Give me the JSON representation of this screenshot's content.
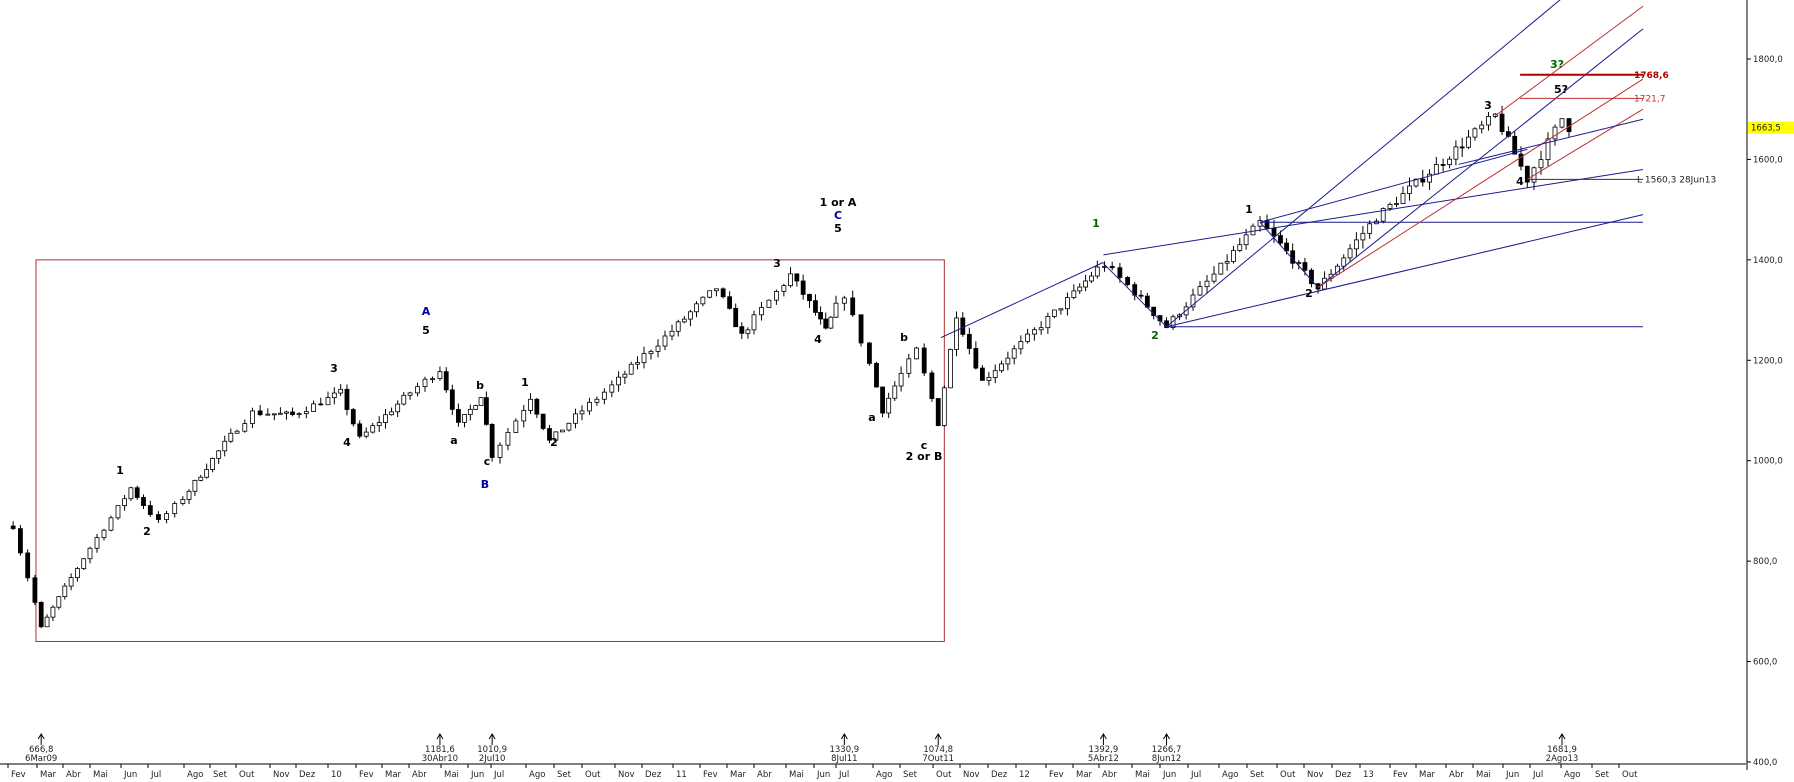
{
  "chart_data": {
    "type": "candlestick",
    "title": "",
    "xlabel": "",
    "ylabel": "",
    "ylim": [
      400,
      1900
    ],
    "y_ticks": [
      "1800,0",
      "1600,0",
      "1400,0",
      "1200,0",
      "1000,0",
      "800,0",
      "600,0",
      "400,0"
    ],
    "y_tick_values": [
      1800,
      1600,
      1400,
      1200,
      1000,
      800,
      600,
      400
    ],
    "x_ticks": [
      "Fev",
      "Mar",
      "Abr",
      "Mai",
      "Jun",
      "Jul",
      "Ago",
      "Set",
      "Out",
      "Nov",
      "Dez",
      "10",
      "Fev",
      "Mar",
      "Abr",
      "Mai",
      "Jun",
      "Jul",
      "Ago",
      "Set",
      "Out",
      "Nov",
      "Dez",
      "11",
      "Fev",
      "Mar",
      "Abr",
      "Mai",
      "Jun",
      "Jul",
      "Ago",
      "Set",
      "Out",
      "Nov",
      "Dez",
      "12",
      "Fev",
      "Mar",
      "Abr",
      "Mai",
      "Jun",
      "Jul",
      "Ago",
      "Set",
      "Out",
      "Nov",
      "Dez",
      "13",
      "Fev",
      "Mar",
      "Abr",
      "Mai",
      "Jun",
      "Jul",
      "Ago",
      "Set",
      "Out"
    ],
    "current_price_label": "1663,5",
    "current_price": 1663.5,
    "grid": false,
    "anchors": [
      {
        "date": "2009-03-06",
        "value": 666.8
      },
      {
        "date": "2010-04-30",
        "value": 1181.6
      },
      {
        "date": "2010-07-02",
        "value": 1010.9
      },
      {
        "date": "2011-07-08",
        "value": 1330.9
      },
      {
        "date": "2011-10-07",
        "value": 1074.8
      },
      {
        "date": "2012-04-05",
        "value": 1392.9
      },
      {
        "date": "2012-06-08",
        "value": 1266.7
      },
      {
        "date": "2013-08-02",
        "value": 1681.9
      },
      {
        "date": "2013-08-09",
        "value": 1663.5
      }
    ],
    "extreme_labels": [
      {
        "value": "666,8",
        "date": "6Mar09"
      },
      {
        "value": "1181,6",
        "date": "30Abr10"
      },
      {
        "value": "1010,9",
        "date": "2Jul10"
      },
      {
        "value": "1330,9",
        "date": "8Jul11"
      },
      {
        "value": "1074,8",
        "date": "7Out11"
      },
      {
        "value": "1392,9",
        "date": "5Abr12"
      },
      {
        "value": "1266,7",
        "date": "8Jun12"
      },
      {
        "value": "1681,9",
        "date": "2Ago13"
      }
    ],
    "price_levels": [
      {
        "label": "1768,6",
        "value": 1768.6,
        "color": "#b00000"
      },
      {
        "label": "1721,7",
        "value": 1721.7,
        "color": "#c03030"
      },
      {
        "label": "L 1560,3 28Jun13",
        "value": 1560.3,
        "color": "#222222"
      }
    ],
    "wave_labels": [
      {
        "text": "1",
        "color": "#000000"
      },
      {
        "text": "2",
        "color": "#000000"
      },
      {
        "text": "3",
        "color": "#000000"
      },
      {
        "text": "4",
        "color": "#000000"
      },
      {
        "text": "5",
        "color": "#000000"
      },
      {
        "text": "A",
        "color": "#000099"
      },
      {
        "text": "a",
        "color": "#000000"
      },
      {
        "text": "b",
        "color": "#000000"
      },
      {
        "text": "c",
        "color": "#000000"
      },
      {
        "text": "B",
        "color": "#000099"
      },
      {
        "text": "1",
        "color": "#000000"
      },
      {
        "text": "2",
        "color": "#000000"
      },
      {
        "text": "3",
        "color": "#000000"
      },
      {
        "text": "4",
        "color": "#000000"
      },
      {
        "text": "1 or A",
        "color": "#000000"
      },
      {
        "text": "C",
        "color": "#000099"
      },
      {
        "text": "5",
        "color": "#000000"
      },
      {
        "text": "a",
        "color": "#000000"
      },
      {
        "text": "b",
        "color": "#000000"
      },
      {
        "text": "c",
        "color": "#000000"
      },
      {
        "text": "2 or B",
        "color": "#000000"
      },
      {
        "text": "1",
        "color": "#006600"
      },
      {
        "text": "2",
        "color": "#006600"
      },
      {
        "text": "1",
        "color": "#000000"
      },
      {
        "text": "2",
        "color": "#000000"
      },
      {
        "text": "3",
        "color": "#000000"
      },
      {
        "text": "4",
        "color": "#000000"
      },
      {
        "text": "5?",
        "color": "#000000"
      },
      {
        "text": "3?",
        "color": "#006600"
      }
    ],
    "colors": {
      "up": "#ffffff",
      "down": "#000000",
      "channel_blue": "#1a1a8c",
      "channel_red": "#c03030",
      "box": "#b03030",
      "highlight": "#ffff00"
    }
  }
}
